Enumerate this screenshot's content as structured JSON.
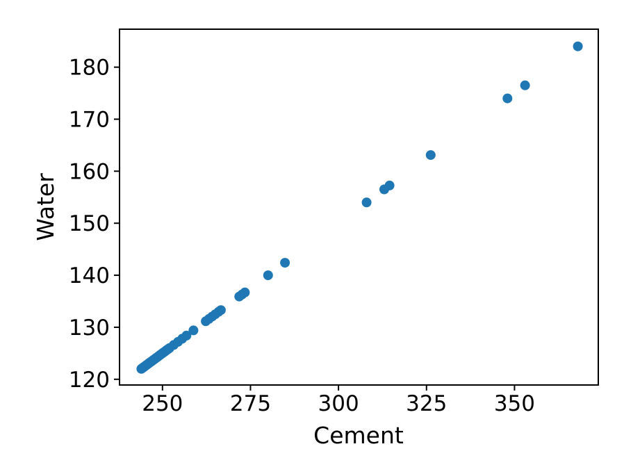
{
  "chart_data": {
    "type": "scatter",
    "xlabel": "Cement",
    "ylabel": "Water",
    "marker_color": "#1f77b4",
    "axis_color": "#000000",
    "background_color": "#ffffff",
    "grid": false,
    "legend_position": "none",
    "xlim": [
      237.8,
      373.8
    ],
    "ylim": [
      118.9,
      187.3
    ],
    "xticks": [
      250,
      275,
      300,
      325,
      350
    ],
    "yticks": [
      120,
      130,
      140,
      150,
      160,
      170,
      180
    ],
    "points": {
      "x": [
        244.0,
        244.33,
        244.67,
        245.0,
        245.33,
        245.67,
        246.0,
        246.33,
        246.67,
        247.0,
        247.33,
        247.67,
        248.0,
        248.33,
        248.67,
        249.0,
        249.33,
        249.67,
        250.0,
        250.33,
        250.67,
        251.0,
        251.33,
        251.67,
        252.0,
        253.2,
        254.4,
        255.6,
        256.8,
        258.8,
        262.3,
        263.2,
        264.1,
        265.0,
        265.9,
        266.6,
        271.8,
        272.6,
        273.4,
        280.0,
        284.8,
        308.0,
        313.0,
        314.5,
        326.2,
        348.0,
        353.0,
        368.0
      ],
      "y": [
        122.0,
        122.17,
        122.33,
        122.5,
        122.67,
        122.83,
        123.0,
        123.17,
        123.33,
        123.5,
        123.67,
        123.83,
        124.0,
        124.17,
        124.33,
        124.5,
        124.67,
        124.83,
        125.0,
        125.17,
        125.33,
        125.5,
        125.67,
        125.83,
        126.0,
        126.6,
        127.2,
        127.8,
        128.4,
        129.4,
        131.15,
        131.6,
        132.05,
        132.5,
        132.95,
        133.3,
        135.9,
        136.3,
        136.7,
        140.0,
        142.4,
        154.0,
        156.5,
        157.25,
        163.1,
        174.0,
        176.5,
        184.0
      ]
    }
  }
}
